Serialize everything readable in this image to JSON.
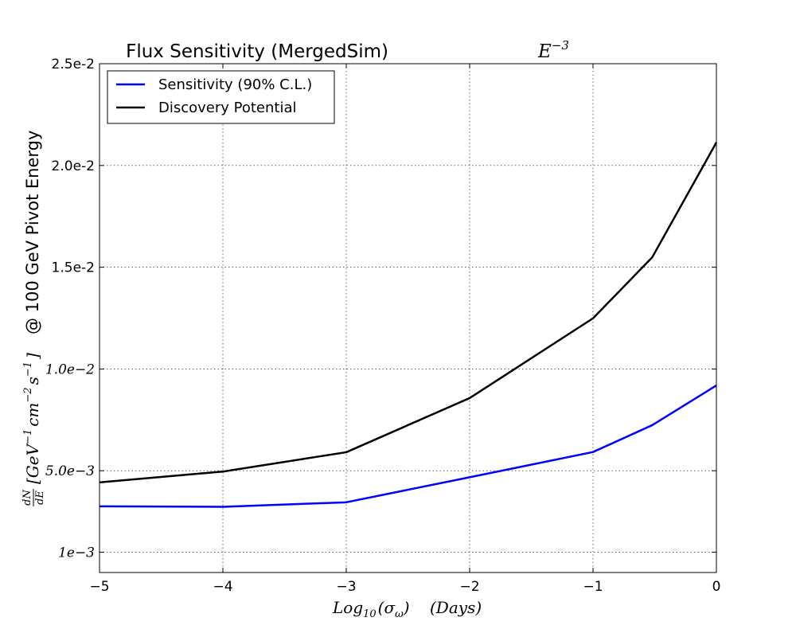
{
  "chart_data": {
    "type": "line",
    "title": "Flux Sensitivity (MergedSim)",
    "title_math_base": "E",
    "title_math_exp": "−3",
    "xlabel_math": "Log",
    "xlabel_sub": "10",
    "xlabel_sigma": "(σ",
    "xlabel_omega": "ω",
    "xlabel_close": ")",
    "xlabel_unit": "(Days)",
    "ylabel_frac_num": "dN",
    "ylabel_frac_den": "dE",
    "ylabel_units_gev": "[GeV",
    "ylabel_units_cm": "cm",
    "ylabel_units_s": "s",
    "ylabel_units_close": "]",
    "ylabel_exp_1": "−1",
    "ylabel_exp_2": "−2",
    "ylabel_text": "@ 100 GeV Pivot Energy",
    "xlim": [
      -5,
      0
    ],
    "ylim": [
      0.0,
      0.025
    ],
    "x_ticks": [
      {
        "value": -5,
        "label": "−5"
      },
      {
        "value": -4,
        "label": "−4"
      },
      {
        "value": -3,
        "label": "−3"
      },
      {
        "value": -2,
        "label": "−2"
      },
      {
        "value": -1,
        "label": "−1"
      },
      {
        "value": 0,
        "label": "0"
      }
    ],
    "y_ticks": [
      {
        "value": 0.001,
        "label": "1e−3",
        "math": true
      },
      {
        "value": 0.005,
        "label": "5.0e−3",
        "math": true
      },
      {
        "value": 0.01,
        "label": "1.0e−2",
        "math": true
      },
      {
        "value": 0.015,
        "label": "1.5e-2",
        "math": false
      },
      {
        "value": 0.02,
        "label": "2.0e-2",
        "math": false
      },
      {
        "value": 0.025,
        "label": "2.5e-2",
        "math": false
      }
    ],
    "grid": true,
    "legend_position": "top-left",
    "x": [
      -5,
      -4,
      -3,
      -2,
      -1,
      -0.52,
      0
    ],
    "series": [
      {
        "name": "Sensitivity (90% C.L.)",
        "color": "#0000ff",
        "values": [
          0.00325,
          0.00323,
          0.00345,
          0.00468,
          0.00592,
          0.00724,
          0.00919
        ]
      },
      {
        "name": "Discovery Potential",
        "color": "#000000",
        "values": [
          0.00443,
          0.00496,
          0.00591,
          0.00857,
          0.01249,
          0.01549,
          0.02113
        ]
      }
    ]
  }
}
